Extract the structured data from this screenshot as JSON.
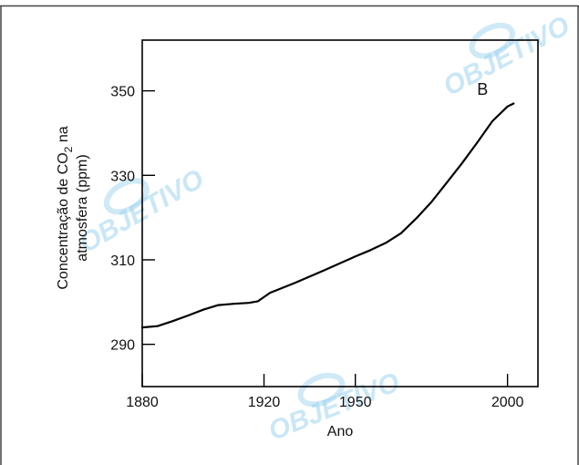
{
  "watermark": {
    "text": "OBJETIVO",
    "color": "#9fd4ef"
  },
  "chart_data": {
    "type": "line",
    "xlabel": "Ano",
    "ylabel": {
      "line1_prefix": "Concentração de CO",
      "line1_sub": "2",
      "line1_suffix": " na",
      "line2": "atmosfera (ppm)"
    },
    "xlim": [
      1880,
      2010
    ],
    "ylim": [
      280,
      362
    ],
    "xticks": [
      1880,
      1920,
      1950,
      2000
    ],
    "yticks": [
      290,
      310,
      330,
      350
    ],
    "grid": false,
    "line_color": "#000000",
    "annotation": {
      "text": "B",
      "x": 1990,
      "y": 349
    },
    "series": [
      {
        "x": [
          1880,
          1885,
          1890,
          1895,
          1900,
          1905,
          1910,
          1915,
          1918,
          1922,
          1930,
          1940,
          1950,
          1955,
          1960,
          1965,
          1970,
          1975,
          1980,
          1985,
          1990,
          1995,
          2000,
          2002
        ],
        "y": [
          294,
          294.3,
          295.5,
          296.8,
          298.2,
          299.3,
          299.6,
          299.8,
          300.2,
          302.2,
          304.5,
          307.6,
          310.8,
          312.3,
          314,
          316.3,
          319.8,
          323.7,
          328.2,
          332.8,
          337.7,
          342.8,
          346.3,
          347
        ]
      }
    ]
  }
}
